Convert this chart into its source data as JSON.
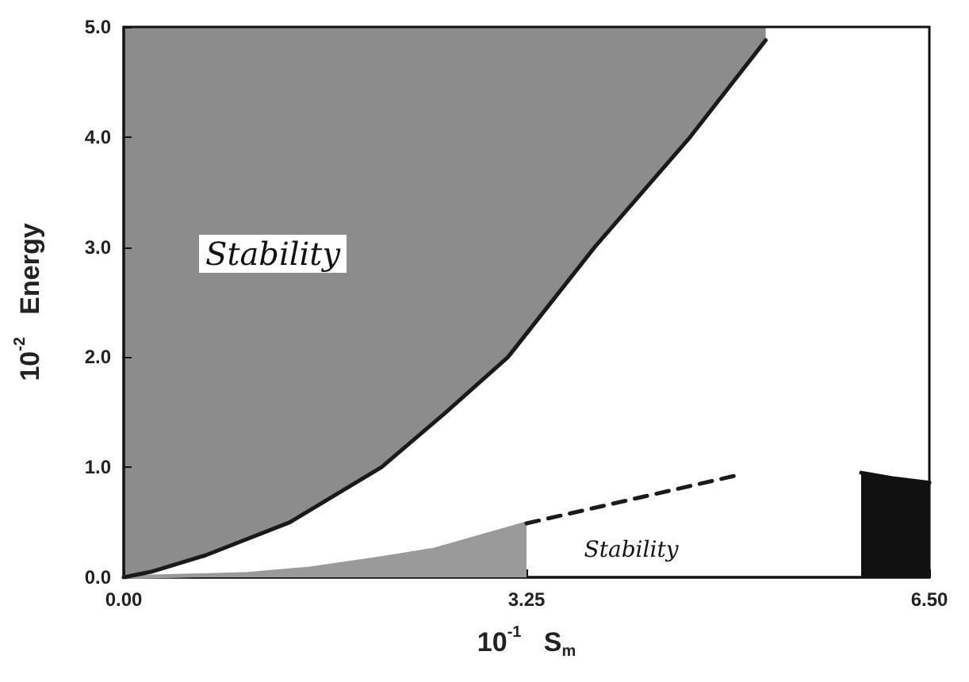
{
  "chart_data": {
    "type": "line",
    "xlabel": "10$^{-1}$   S$_{m}$",
    "ylabel": "10$^{-2}$   Energy",
    "xlim": [
      0,
      6.5
    ],
    "xticks": [
      {
        "value": 0,
        "label": "0.00"
      },
      {
        "value": 3.25,
        "label": "3.25"
      },
      {
        "value": 6.5,
        "label": "6.50"
      }
    ],
    "ylim": [
      0,
      5.0
    ],
    "yticks": [
      {
        "value": 0,
        "label": "0.0"
      },
      {
        "value": 1,
        "label": "1.0"
      },
      {
        "value": 2,
        "label": "2.0"
      },
      {
        "value": 3,
        "label": "3.0"
      },
      {
        "value": 4,
        "label": "4.0"
      },
      {
        "value": 5,
        "label": "5.0"
      }
    ],
    "grid": false,
    "marker": "none",
    "series": [
      {
        "color": "#1a1a1a",
        "x": [
          0,
          0.22,
          0.66,
          1.34,
          2.08,
          2.6,
          3.1,
          3.8,
          4.57,
          5.18
        ],
        "values": [
          0,
          0.05,
          0.2,
          0.5,
          1.0,
          1.5,
          2.0,
          3.0,
          4.0,
          4.88
        ],
        "lower": [
          0,
          0.05,
          0.2,
          0.5,
          1.0,
          1.5,
          2.0,
          3.0,
          4.0,
          4.88
        ],
        "upper": [
          5.0,
          5.0,
          5.0,
          5.0,
          5.0,
          5.0,
          5.0,
          5.0,
          5.0,
          5.0
        ]
      },
      {
        "type": "area",
        "color": "#9a9a9a",
        "x": [
          0,
          1.0,
          1.5,
          2.0,
          2.5,
          3.25
        ],
        "values": [
          0,
          0.03,
          0.08,
          0.16,
          0.25,
          0.49
        ]
      },
      {
        "type": "line",
        "color": "#1a1a1a",
        "line_style": "dashed",
        "x": [
          3.25,
          4.96
        ],
        "values": [
          0.49,
          0.93
        ]
      },
      {
        "type": "area",
        "color": "#111111",
        "x": [
          5.95,
          6.2,
          6.5
        ],
        "values": [
          0.95,
          0.9,
          0.86
        ]
      }
    ],
    "annotations": [
      "Stability",
      "Stability"
    ]
  }
}
